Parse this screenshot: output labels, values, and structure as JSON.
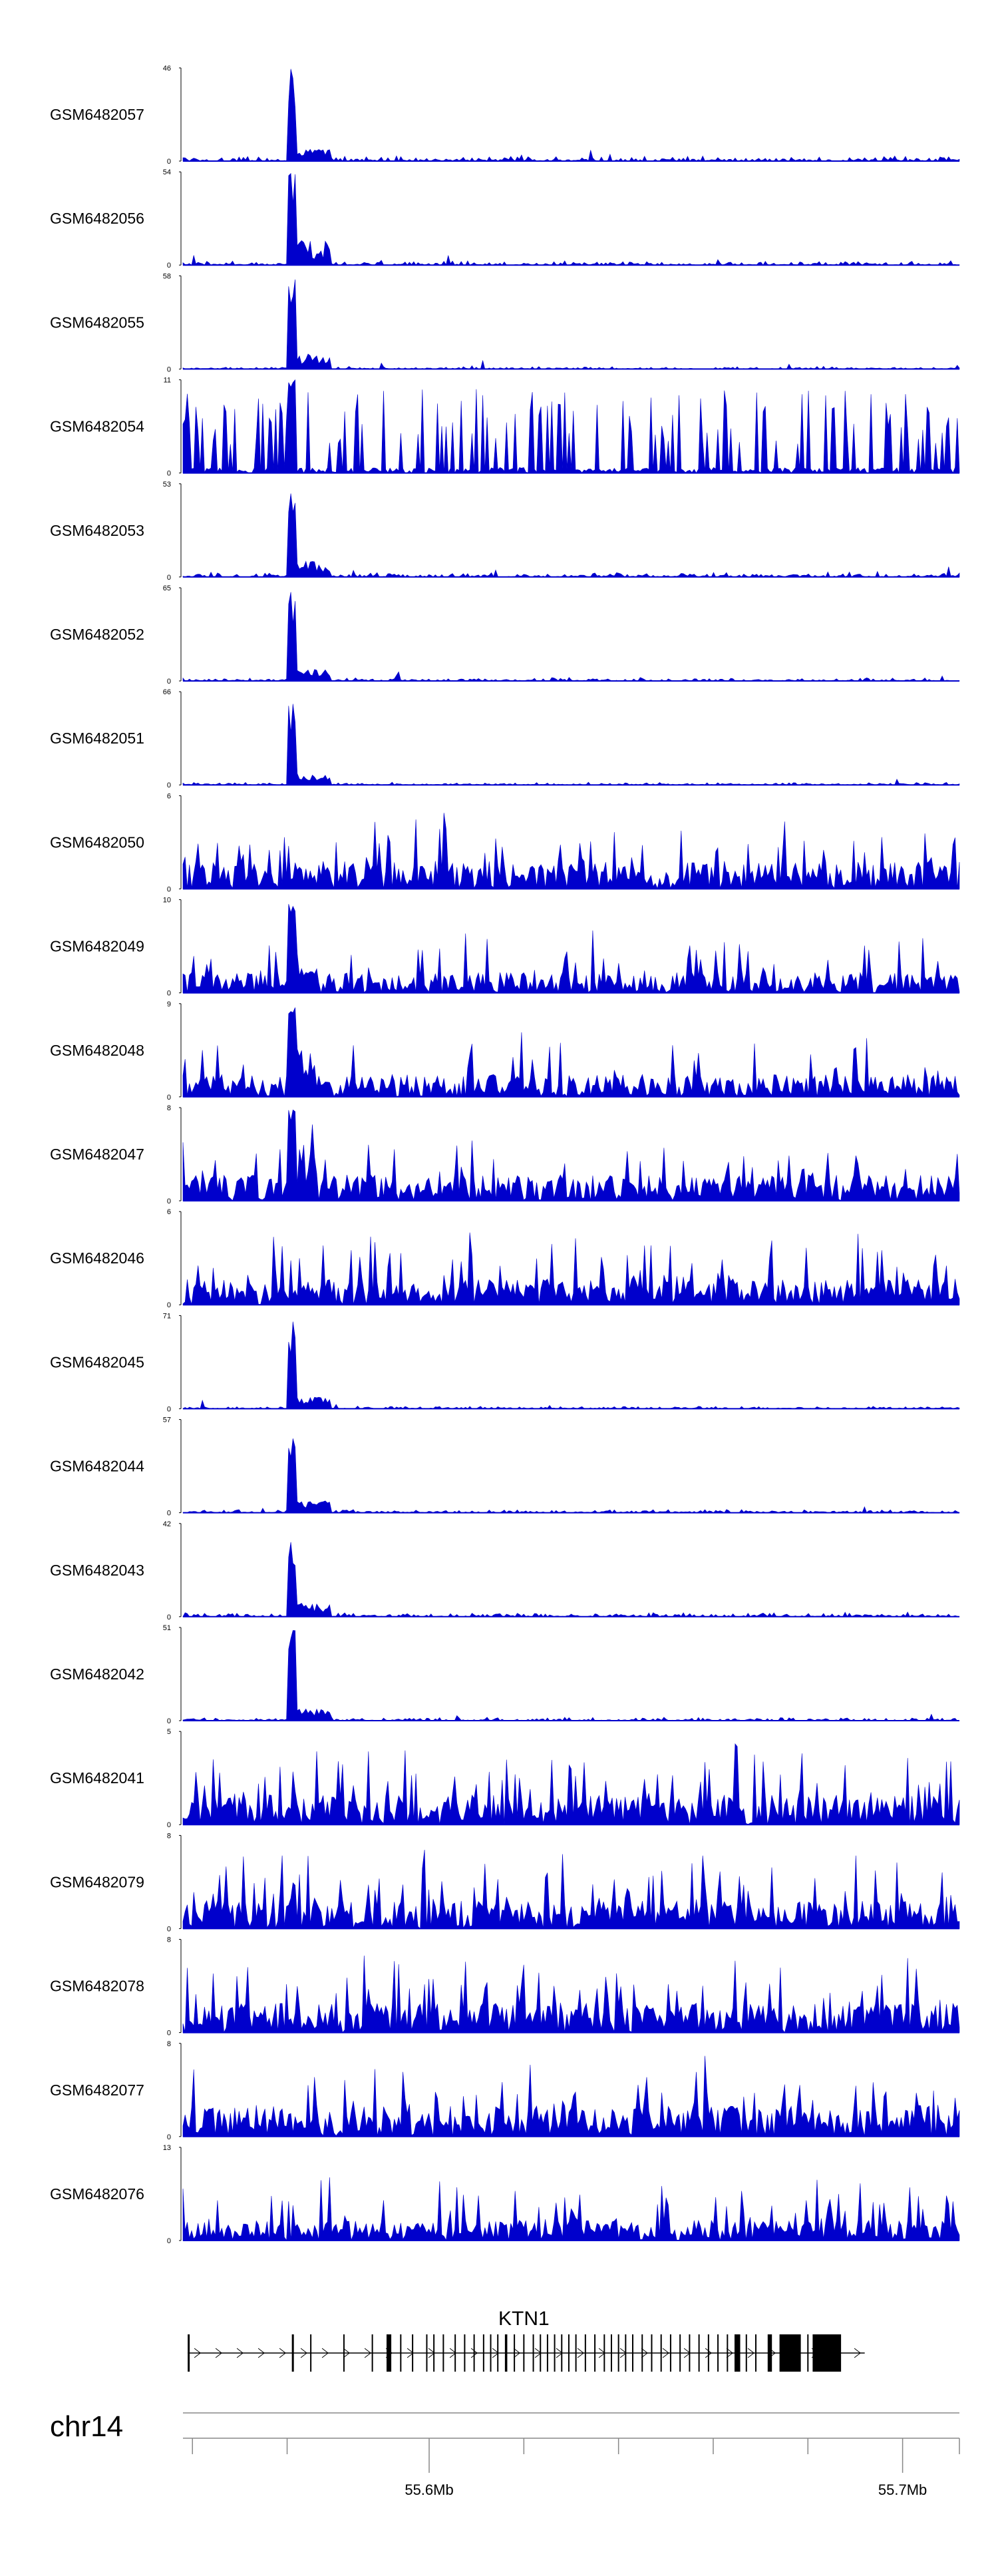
{
  "chart_data": {
    "type": "area",
    "chromosome": "chr14",
    "x_range_bp": [
      55548000,
      55712000
    ],
    "signal_color": "#0000cc",
    "series": [
      {
        "name": "GSM6482057",
        "ymax": 46,
        "ymin": 0,
        "profile": "peak",
        "peak_pos": 55571000,
        "bg": 0.06,
        "tail": 0.08
      },
      {
        "name": "GSM6482056",
        "ymax": 54,
        "ymin": 0,
        "profile": "peak",
        "peak_pos": 55571000,
        "bg": 0.05,
        "tail": 0.22
      },
      {
        "name": "GSM6482055",
        "ymax": 58,
        "ymin": 0,
        "profile": "peak",
        "peak_pos": 55571000,
        "bg": 0.03,
        "tail": 0.1
      },
      {
        "name": "GSM6482054",
        "ymax": 11,
        "ymin": 0,
        "profile": "sparse",
        "peak_pos": 55571000,
        "bg": 0.1,
        "tail": 0.1
      },
      {
        "name": "GSM6482053",
        "ymax": 53,
        "ymin": 0,
        "profile": "peak",
        "peak_pos": 55571000,
        "bg": 0.06,
        "tail": 0.12
      },
      {
        "name": "GSM6482052",
        "ymax": 65,
        "ymin": 0,
        "profile": "peak",
        "peak_pos": 55571000,
        "bg": 0.04,
        "tail": 0.08
      },
      {
        "name": "GSM6482051",
        "ymax": 66,
        "ymin": 0,
        "profile": "peak",
        "peak_pos": 55571000,
        "bg": 0.03,
        "tail": 0.06
      },
      {
        "name": "GSM6482050",
        "ymax": 6,
        "ymin": 0,
        "profile": "noisy",
        "peak_pos": 55571000,
        "bg": 0.3,
        "tail": 0.1
      },
      {
        "name": "GSM6482049",
        "ymax": 10,
        "ymin": 0,
        "profile": "noisy-peak",
        "peak_pos": 55571000,
        "bg": 0.22,
        "tail": 0.3
      },
      {
        "name": "GSM6482048",
        "ymax": 9,
        "ymin": 0,
        "profile": "noisy-peak",
        "peak_pos": 55571000,
        "bg": 0.24,
        "tail": 0.3
      },
      {
        "name": "GSM6482047",
        "ymax": 8,
        "ymin": 0,
        "profile": "noisy-peak",
        "peak_pos": 55571000,
        "bg": 0.28,
        "tail": 0.35
      },
      {
        "name": "GSM6482046",
        "ymax": 6,
        "ymin": 0,
        "profile": "noisy",
        "peak_pos": 55571000,
        "bg": 0.28,
        "tail": 0.1
      },
      {
        "name": "GSM6482045",
        "ymax": 71,
        "ymin": 0,
        "profile": "peak",
        "peak_pos": 55571000,
        "bg": 0.03,
        "tail": 0.08
      },
      {
        "name": "GSM6482044",
        "ymax": 57,
        "ymin": 0,
        "profile": "peak",
        "peak_pos": 55571000,
        "bg": 0.04,
        "tail": 0.08
      },
      {
        "name": "GSM6482043",
        "ymax": 42,
        "ymin": 0,
        "profile": "peak",
        "peak_pos": 55571000,
        "bg": 0.05,
        "tail": 0.12
      },
      {
        "name": "GSM6482042",
        "ymax": 51,
        "ymin": 0,
        "profile": "peak",
        "peak_pos": 55571000,
        "bg": 0.04,
        "tail": 0.08
      },
      {
        "name": "GSM6482041",
        "ymax": 5,
        "ymin": 0,
        "profile": "noisy",
        "peak_pos": 55571000,
        "bg": 0.32,
        "tail": 0.1
      },
      {
        "name": "GSM6482079",
        "ymax": 8,
        "ymin": 0,
        "profile": "noisy",
        "peak_pos": 55571000,
        "bg": 0.3,
        "tail": 0.1
      },
      {
        "name": "GSM6482078",
        "ymax": 8,
        "ymin": 0,
        "profile": "noisy",
        "peak_pos": 55571000,
        "bg": 0.32,
        "tail": 0.1
      },
      {
        "name": "GSM6482077",
        "ymax": 8,
        "ymin": 0,
        "profile": "noisy",
        "peak_pos": 55571000,
        "bg": 0.34,
        "tail": 0.1
      },
      {
        "name": "GSM6482076",
        "ymax": 13,
        "ymin": 0,
        "profile": "noisy",
        "peak_pos": 55571000,
        "bg": 0.22,
        "tail": 0.1
      }
    ],
    "gene": {
      "name": "KTN1",
      "start": 55549000,
      "end": 55692000,
      "strand": "+",
      "exons": [
        [
          55549000,
          55549300
        ],
        [
          55571000,
          55571400
        ],
        [
          55591000,
          55592000
        ],
        [
          55616000,
          55616500
        ],
        [
          55664500,
          55665700
        ],
        [
          55671500,
          55672400
        ],
        [
          55674000,
          55678500
        ],
        [
          55681000,
          55687000
        ]
      ],
      "minor_exons": [
        55575000,
        55582000,
        55588000,
        55594000,
        55596500,
        55599500,
        55601000,
        55603000,
        55605500,
        55607500,
        55609500,
        55611500,
        55613000,
        55614500,
        55618000,
        55620000,
        55622000,
        55623500,
        55625000,
        55626500,
        55628000,
        55629500,
        55631000,
        55633000,
        55635000,
        55637000,
        55638500,
        55640000,
        55641500,
        55643000,
        55645000,
        55647000,
        55649000,
        55651000,
        55653000,
        55655000,
        55657000,
        55659000,
        55661000,
        55663000,
        55667000,
        55669000,
        55680000
      ]
    },
    "axis": {
      "chromosome_label": "chr14",
      "major_ticks": [
        {
          "pos": 55600000,
          "label": "55.6Mb"
        },
        {
          "pos": 55700000,
          "label": "55.7Mb"
        }
      ],
      "minor_ticks": [
        55550000,
        55570000,
        55620000,
        55640000,
        55660000,
        55680000,
        55720000
      ]
    }
  }
}
